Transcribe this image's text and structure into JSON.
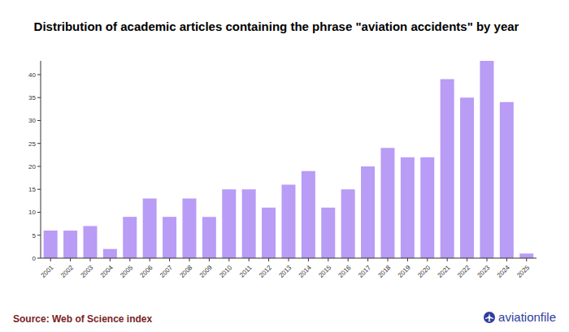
{
  "chart_data": {
    "type": "bar",
    "title": "Distribution of academic articles containing the phrase \"aviation accidents\" by year",
    "categories": [
      "2001",
      "2002",
      "2003",
      "2004",
      "2005",
      "2006",
      "2007",
      "2008",
      "2009",
      "2010",
      "2011",
      "2012",
      "2013",
      "2014",
      "2015",
      "2016",
      "2017",
      "2018",
      "2019",
      "2020",
      "2021",
      "2022",
      "2023",
      "2024",
      "2025"
    ],
    "values": [
      6,
      6,
      7,
      2,
      9,
      13,
      9,
      13,
      9,
      15,
      15,
      11,
      16,
      19,
      11,
      15,
      20,
      24,
      22,
      22,
      39,
      35,
      43,
      34,
      1
    ],
    "color": "#b99cf5",
    "ylim": [
      0,
      43
    ],
    "yticks": [
      0,
      5,
      10,
      15,
      20,
      25,
      30,
      35,
      40
    ],
    "grid": false,
    "annotations": [
      "Source: Web of Science index",
      "aviationfile"
    ]
  }
}
